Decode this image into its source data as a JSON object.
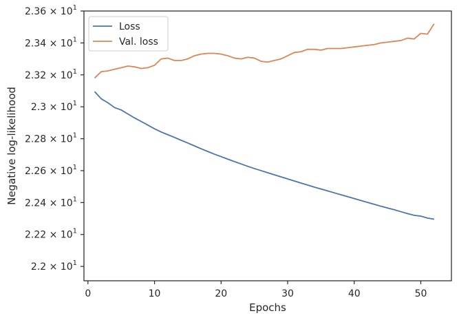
{
  "chart_data": {
    "type": "line",
    "title": "",
    "xlabel": "Epochs",
    "ylabel": "Negative log-likelihood",
    "xlim": [
      -0.6,
      54.6
    ],
    "ylim": [
      21.91,
      23.6
    ],
    "x_ticks": [
      0,
      10,
      20,
      30,
      40,
      50
    ],
    "y_ticks": [
      {
        "value": 22.0,
        "mantissa": "2.2"
      },
      {
        "value": 22.2,
        "mantissa": "2.22"
      },
      {
        "value": 22.4,
        "mantissa": "2.24"
      },
      {
        "value": 22.6,
        "mantissa": "2.26"
      },
      {
        "value": 22.8,
        "mantissa": "2.28"
      },
      {
        "value": 23.0,
        "mantissa": "2.3"
      },
      {
        "value": 23.2,
        "mantissa": "2.32"
      },
      {
        "value": 23.4,
        "mantissa": "2.34"
      },
      {
        "value": 23.6,
        "mantissa": "2.36"
      }
    ],
    "y_tick_times": "×",
    "y_tick_base": "10",
    "y_tick_exponent": "1",
    "grid": false,
    "legend_position": "top-left",
    "x": [
      1,
      2,
      3,
      4,
      5,
      6,
      7,
      8,
      9,
      10,
      11,
      12,
      13,
      14,
      15,
      16,
      17,
      18,
      19,
      20,
      21,
      22,
      23,
      24,
      25,
      26,
      27,
      28,
      29,
      30,
      31,
      32,
      33,
      34,
      35,
      36,
      37,
      38,
      39,
      40,
      41,
      42,
      43,
      44,
      45,
      46,
      47,
      48,
      49,
      50,
      51,
      52
    ],
    "series": [
      {
        "name": "Loss",
        "color": "#4c72b0",
        "values": [
          23.095,
          23.05,
          23.025,
          22.995,
          22.98,
          22.955,
          22.93,
          22.908,
          22.885,
          22.862,
          22.842,
          22.825,
          22.808,
          22.79,
          22.773,
          22.755,
          22.737,
          22.72,
          22.703,
          22.688,
          22.672,
          22.657,
          22.642,
          22.627,
          22.613,
          22.6,
          22.587,
          22.574,
          22.561,
          22.548,
          22.535,
          22.522,
          22.51,
          22.497,
          22.485,
          22.473,
          22.461,
          22.449,
          22.437,
          22.425,
          22.413,
          22.401,
          22.389,
          22.377,
          22.366,
          22.355,
          22.343,
          22.331,
          22.32,
          22.315,
          22.303,
          22.296
        ]
      },
      {
        "name": "Val. loss",
        "color": "#dd8452",
        "values": [
          23.18,
          23.22,
          23.225,
          23.235,
          23.245,
          23.255,
          23.25,
          23.24,
          23.245,
          23.26,
          23.3,
          23.305,
          23.29,
          23.29,
          23.3,
          23.32,
          23.33,
          23.335,
          23.335,
          23.33,
          23.32,
          23.305,
          23.3,
          23.31,
          23.305,
          23.285,
          23.28,
          23.29,
          23.3,
          23.32,
          23.34,
          23.345,
          23.36,
          23.36,
          23.355,
          23.365,
          23.365,
          23.365,
          23.37,
          23.375,
          23.38,
          23.385,
          23.39,
          23.4,
          23.405,
          23.41,
          23.415,
          23.43,
          23.425,
          23.46,
          23.455,
          23.52
        ]
      }
    ]
  }
}
